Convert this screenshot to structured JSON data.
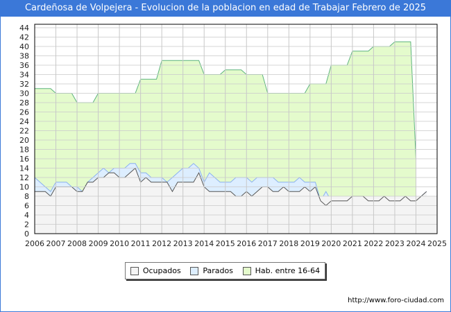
{
  "title": "Cardeñosa de Volpejera - Evolucion de la poblacion en edad de Trabajar Febrero de 2025",
  "url": "http://www.foro-ciudad.com",
  "colors": {
    "title_bg": "#3b78d8",
    "ocupados": "#f4f4f4",
    "parados": "#ddeeff",
    "hab": "#e4fbcc",
    "hab_line": "#5db37e",
    "parados_line": "#8ab0f0",
    "ocupados_line": "#555555"
  },
  "chart_data": {
    "type": "area",
    "title": "Cardeñosa de Volpejera - Evolucion de la poblacion en edad de Trabajar Febrero de 2025",
    "xlim": [
      2006,
      2025
    ],
    "ylim": [
      0,
      44
    ],
    "x_ticks": [
      "2006",
      "2007",
      "2008",
      "2009",
      "2010",
      "2011",
      "2012",
      "2013",
      "2014",
      "2015",
      "2016",
      "2017",
      "2018",
      "2019",
      "2020",
      "2021",
      "2022",
      "2023",
      "2024",
      "2025"
    ],
    "y_ticks": [
      0,
      2,
      4,
      6,
      8,
      10,
      12,
      14,
      16,
      18,
      20,
      22,
      24,
      26,
      28,
      30,
      32,
      34,
      36,
      38,
      40,
      42,
      44
    ],
    "x_step": 0.25,
    "x_start": 2006,
    "series": [
      {
        "name": "Ocupados",
        "values": [
          9,
          9,
          9,
          8,
          10,
          10,
          10,
          10,
          9,
          9,
          11,
          11,
          12,
          12,
          13,
          13,
          12,
          12,
          13,
          14,
          11,
          12,
          11,
          11,
          11,
          11,
          9,
          11,
          11,
          11,
          11,
          13,
          10,
          9,
          9,
          9,
          9,
          9,
          8,
          8,
          9,
          8,
          9,
          10,
          10,
          9,
          9,
          10,
          9,
          9,
          9,
          10,
          9,
          10,
          7,
          6,
          7,
          7,
          7,
          7,
          8,
          8,
          8,
          7,
          7,
          7,
          8,
          7,
          7,
          7,
          8,
          7,
          7,
          8,
          9
        ]
      },
      {
        "name": "Parados",
        "values": [
          3,
          2,
          1,
          1,
          1,
          1,
          1,
          0,
          1,
          0,
          0,
          1,
          1,
          2,
          0,
          1,
          2,
          2,
          2,
          1,
          2,
          1,
          1,
          1,
          1,
          0,
          3,
          2,
          3,
          3,
          4,
          1,
          1,
          4,
          3,
          2,
          2,
          2,
          4,
          4,
          3,
          3,
          3,
          2,
          2,
          3,
          2,
          1,
          2,
          2,
          3,
          1,
          2,
          1,
          0,
          3,
          0,
          0,
          0,
          0,
          0,
          0,
          0,
          0,
          0,
          0,
          0,
          0,
          0,
          0,
          0,
          0,
          0
        ]
      },
      {
        "name": "Hab. entre 16-64",
        "values": [
          31,
          31,
          31,
          31,
          30,
          30,
          30,
          30,
          28,
          28,
          28,
          28,
          30,
          30,
          30,
          30,
          30,
          30,
          30,
          30,
          33,
          33,
          33,
          33,
          37,
          37,
          37,
          37,
          37,
          37,
          37,
          37,
          34,
          34,
          34,
          34,
          35,
          35,
          35,
          35,
          34,
          34,
          34,
          34,
          30,
          30,
          30,
          30,
          30,
          30,
          30,
          30,
          32,
          32,
          32,
          32,
          36,
          36,
          36,
          36,
          39,
          39,
          39,
          39,
          40,
          40,
          40,
          40,
          41,
          41,
          41,
          41,
          16
        ]
      }
    ],
    "legend": [
      "Ocupados",
      "Parados",
      "Hab. entre 16-64"
    ],
    "legend_position": "bottom",
    "grid": true
  }
}
